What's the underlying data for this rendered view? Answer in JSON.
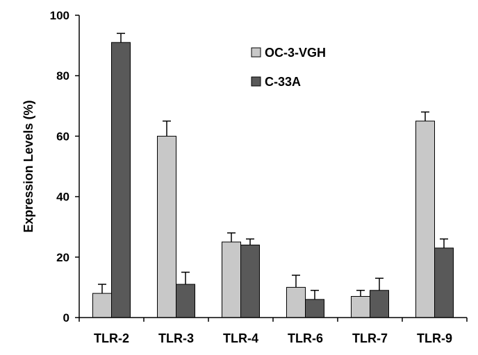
{
  "chart_data": {
    "type": "bar",
    "title": "",
    "xlabel": "",
    "ylabel": "Expression Levels (%)",
    "ylim": [
      0,
      100
    ],
    "yticks": [
      0,
      20,
      40,
      60,
      80,
      100
    ],
    "categories": [
      "TLR-2",
      "TLR-3",
      "TLR-4",
      "TLR-6",
      "TLR-7",
      "TLR-9"
    ],
    "series": [
      {
        "name": "OC-3-VGH",
        "color": "#c8c8c8",
        "values": [
          8,
          60,
          25,
          10,
          7,
          65
        ],
        "errors": [
          3,
          5,
          3,
          4,
          2,
          3
        ]
      },
      {
        "name": "C-33A",
        "color": "#595959",
        "values": [
          91,
          11,
          24,
          6,
          9,
          23
        ],
        "errors": [
          3,
          4,
          2,
          3,
          4,
          3
        ]
      }
    ],
    "grid": false,
    "legend": "top-right"
  }
}
